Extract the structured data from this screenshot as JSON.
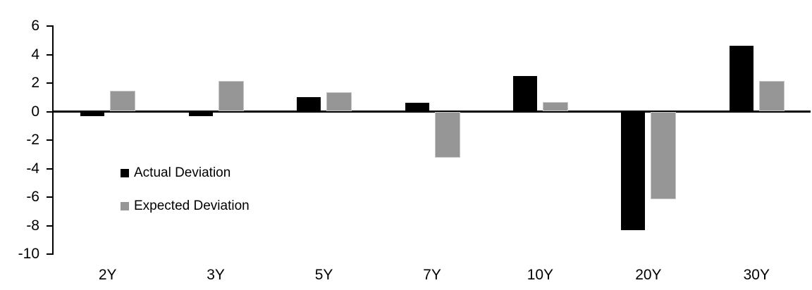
{
  "chart_data": {
    "type": "bar",
    "title": "",
    "categories": [
      "2Y",
      "3Y",
      "5Y",
      "7Y",
      "10Y",
      "20Y",
      "30Y"
    ],
    "series": [
      {
        "name": "Actual Deviation",
        "color": "#000000",
        "values": [
          -0.3,
          -0.3,
          1.0,
          0.6,
          2.5,
          -8.3,
          4.6
        ]
      },
      {
        "name": "Expected Deviation",
        "color": "#969696",
        "values": [
          1.4,
          2.1,
          1.3,
          -3.2,
          0.6,
          -6.1,
          2.1
        ]
      }
    ],
    "xlabel": "",
    "ylabel": "",
    "y_axis": {
      "min": -10,
      "max": 6,
      "step": 2,
      "ticks": [
        6,
        4,
        2,
        0,
        -2,
        -4,
        -6,
        -8,
        -10
      ]
    },
    "grid": false,
    "legend_position": "inside-left",
    "colors": {
      "background": "#ffffff",
      "axis": "#000000",
      "actual": "#000000",
      "expected": "#969696"
    }
  }
}
